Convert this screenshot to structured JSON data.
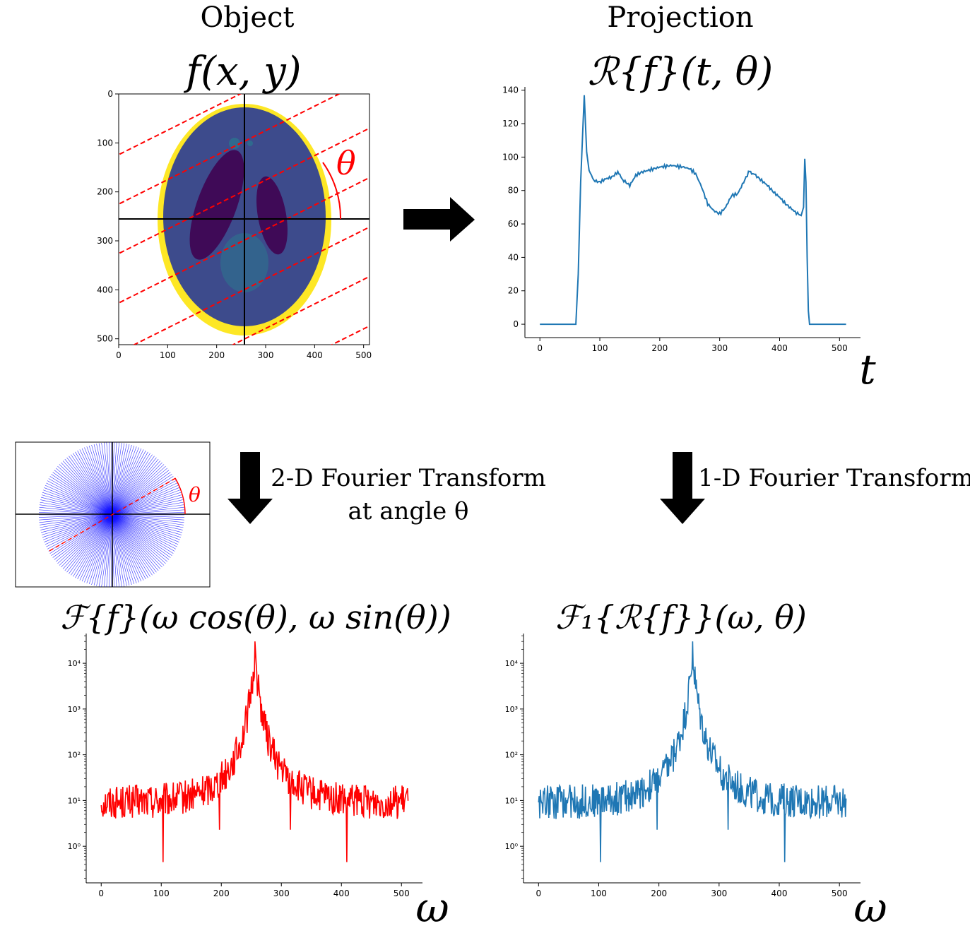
{
  "top_left": {
    "title": "Object",
    "formula": "f(x, y)",
    "theta_label": "θ",
    "x_ticks": [
      "0",
      "100",
      "200",
      "300",
      "400",
      "500"
    ],
    "y_ticks": [
      "0",
      "100",
      "200",
      "300",
      "400",
      "500"
    ]
  },
  "top_right": {
    "title": "Projection",
    "formula": "ℛ{f}(t, θ)",
    "x_axis_symbol": "t"
  },
  "mid_left": {
    "arrow_label_line1": "2-D Fourier Transform",
    "arrow_label_line2": "at angle θ",
    "inset_theta": "θ"
  },
  "mid_right": {
    "arrow_label": "1-D Fourier Transform"
  },
  "bottom_left": {
    "formula": "ℱ{f}(ω cos(θ), ω sin(θ))",
    "x_axis_symbol": "ω",
    "line_color": "#ff0000"
  },
  "bottom_right": {
    "formula": "ℱ₁{ℛ{f}}(ω, θ)",
    "x_axis_symbol": "ω",
    "line_color": "#1f77b4"
  },
  "chart_data": [
    {
      "type": "line",
      "name": "projection",
      "x": [
        0,
        60,
        64,
        68,
        72,
        74,
        76,
        78,
        82,
        90,
        100,
        110,
        120,
        130,
        135,
        140,
        150,
        160,
        170,
        180,
        200,
        220,
        240,
        250,
        260,
        270,
        280,
        290,
        300,
        310,
        320,
        330,
        340,
        350,
        355,
        360,
        370,
        380,
        390,
        400,
        410,
        420,
        430,
        436,
        440,
        442,
        444,
        446,
        448,
        450,
        460,
        500,
        511
      ],
      "y": [
        0,
        0,
        30,
        85,
        120,
        137,
        120,
        103,
        92,
        86,
        85,
        87,
        88,
        91,
        88,
        86,
        83,
        89,
        91,
        92,
        94,
        95,
        94,
        93,
        90,
        82,
        72,
        68,
        66,
        70,
        77,
        78,
        85,
        92,
        90,
        89,
        86,
        83,
        79,
        76,
        72,
        69,
        66,
        65,
        70,
        99,
        85,
        40,
        8,
        0,
        0,
        0,
        0
      ],
      "xlim": [
        -25,
        535
      ],
      "ylim": [
        -8,
        142
      ],
      "x_ticks": [
        0,
        100,
        200,
        300,
        400,
        500
      ],
      "y_ticks": [
        0,
        20,
        40,
        60,
        80,
        100,
        120,
        140
      ],
      "color": "#1f77b4"
    },
    {
      "type": "line",
      "name": "fourier-2d-slice",
      "log_y": true,
      "y_range_log10": [
        -0.8,
        4.65
      ],
      "x_range": [
        0,
        511
      ],
      "peak": {
        "x": 256,
        "y": 30000
      },
      "dips": [
        {
          "x": 103,
          "y": 0.45
        },
        {
          "x": 197,
          "y": 2.3
        },
        {
          "x": 315,
          "y": 2.3
        },
        {
          "x": 409,
          "y": 0.45
        }
      ],
      "x_ticks": [
        0,
        100,
        200,
        300,
        400,
        500
      ],
      "y_ticks": [
        "10⁰",
        "10¹",
        "10²",
        "10³",
        "10⁴"
      ],
      "color": "#ff0000"
    },
    {
      "type": "line",
      "name": "fourier-1d-projection",
      "log_y": true,
      "y_range_log10": [
        -0.8,
        4.65
      ],
      "x_range": [
        0,
        511
      ],
      "peak": {
        "x": 256,
        "y": 30000
      },
      "dips": [
        {
          "x": 103,
          "y": 0.45
        },
        {
          "x": 197,
          "y": 2.3
        },
        {
          "x": 315,
          "y": 2.3
        },
        {
          "x": 409,
          "y": 0.45
        }
      ],
      "x_ticks": [
        0,
        100,
        200,
        300,
        400,
        500
      ],
      "y_ticks": [
        "10⁰",
        "10¹",
        "10²",
        "10³",
        "10⁴"
      ],
      "color": "#1f77b4"
    }
  ]
}
